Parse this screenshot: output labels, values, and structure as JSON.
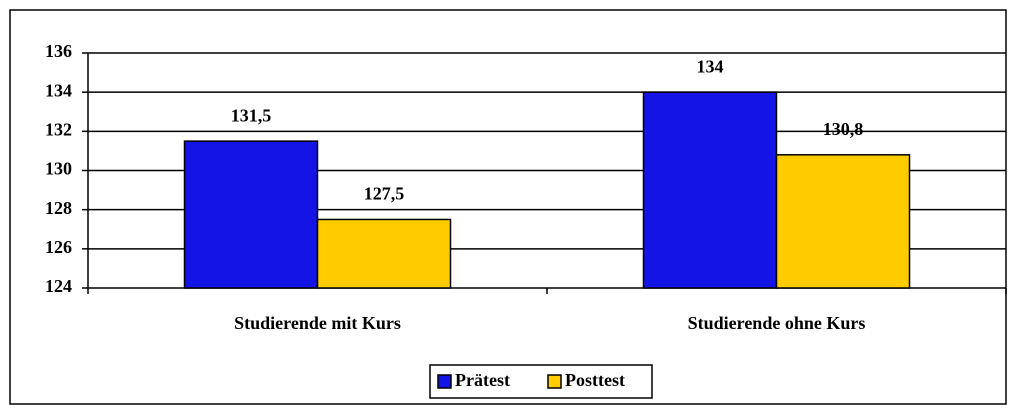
{
  "chart_data": {
    "type": "bar",
    "categories": [
      "Studierende mit Kurs",
      "Studierende ohne Kurs"
    ],
    "series": [
      {
        "name": "Prätest",
        "color": "#1414e6",
        "values": [
          131.5,
          134
        ],
        "value_labels": [
          "131,5",
          "134"
        ]
      },
      {
        "name": "Posttest",
        "color": "#ffcc00",
        "values": [
          127.5,
          130.8
        ],
        "value_labels": [
          "127,5",
          "130,8"
        ]
      }
    ],
    "ylim": [
      124,
      136
    ],
    "yticks": [
      124,
      126,
      128,
      130,
      132,
      134,
      136
    ],
    "grid": true,
    "legend": "bottom"
  }
}
